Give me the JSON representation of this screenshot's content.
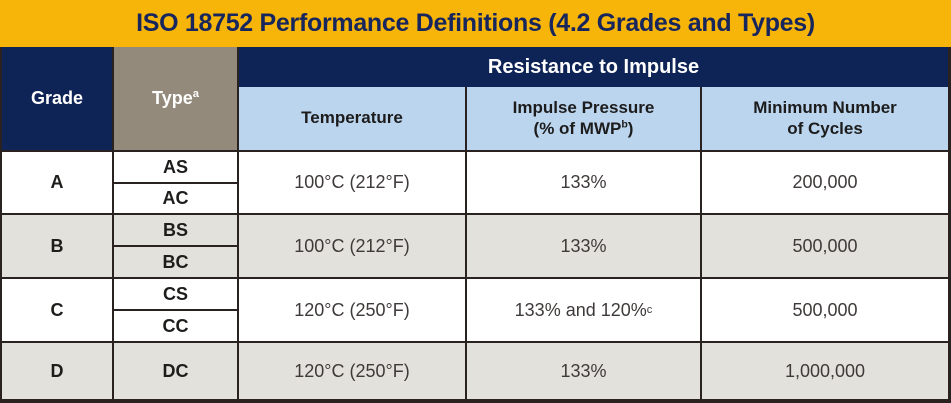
{
  "title": "ISO 18752 Performance Definitions (4.2 Grades and Types)",
  "colors": {
    "gold": "#F8B509",
    "navy": "#0F2456",
    "taupe": "#938A7B",
    "light_blue": "#BCD5EE",
    "row_gray": "#E3E1DC",
    "border": "#2A2220"
  },
  "headers": {
    "grade": "Grade",
    "type": {
      "label": "Type",
      "sup": "a"
    },
    "band": "Resistance to Impulse",
    "temperature": "Temperature",
    "pressure": {
      "line1": "Impulse Pressure",
      "line2_pre": "(% of MWP",
      "sup": "b",
      "line2_post": ")"
    },
    "cycles": {
      "line1": "Minimum Number",
      "line2": "of Cycles"
    }
  },
  "rows": [
    {
      "grade": "A",
      "types": [
        "AS",
        "AC"
      ],
      "temperature": "100°C (212°F)",
      "pressure": "133%",
      "cycles": "200,000"
    },
    {
      "grade": "B",
      "types": [
        "BS",
        "BC"
      ],
      "temperature": "100°C (212°F)",
      "pressure": "133%",
      "cycles": "500,000"
    },
    {
      "grade": "C",
      "types": [
        "CS",
        "CC"
      ],
      "temperature": "120°C (250°F)",
      "pressure": "133% and 120%",
      "pressure_sup": "c",
      "cycles": "500,000"
    },
    {
      "grade": "D",
      "types": [
        "DC"
      ],
      "temperature": "120°C (250°F)",
      "pressure": "133%",
      "cycles": "1,000,000"
    }
  ]
}
